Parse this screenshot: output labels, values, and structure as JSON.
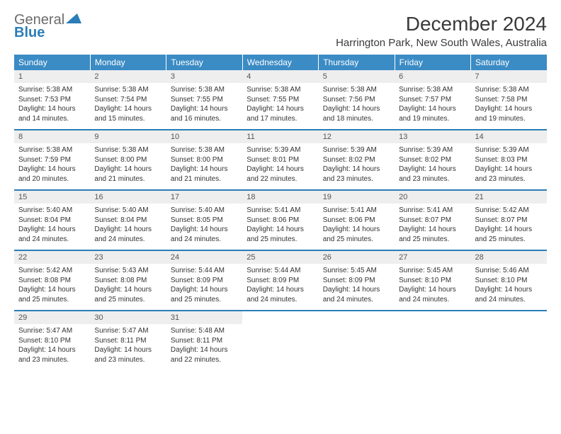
{
  "logo": {
    "word1": "General",
    "word2": "Blue"
  },
  "title": "December 2024",
  "location": "Harrington Park, New South Wales, Australia",
  "header_bg": "#3b8bc4",
  "rule_color": "#2a7db8",
  "daynum_bg": "#eeeeee",
  "dow": [
    "Sunday",
    "Monday",
    "Tuesday",
    "Wednesday",
    "Thursday",
    "Friday",
    "Saturday"
  ],
  "fonts": {
    "title_size": 28,
    "location_size": 15,
    "dow_size": 12,
    "daynum_size": 11,
    "body_size": 10
  },
  "days": [
    {
      "n": 1,
      "sr": "5:38 AM",
      "ss": "7:53 PM",
      "dl": "14 hours and 14 minutes."
    },
    {
      "n": 2,
      "sr": "5:38 AM",
      "ss": "7:54 PM",
      "dl": "14 hours and 15 minutes."
    },
    {
      "n": 3,
      "sr": "5:38 AM",
      "ss": "7:55 PM",
      "dl": "14 hours and 16 minutes."
    },
    {
      "n": 4,
      "sr": "5:38 AM",
      "ss": "7:55 PM",
      "dl": "14 hours and 17 minutes."
    },
    {
      "n": 5,
      "sr": "5:38 AM",
      "ss": "7:56 PM",
      "dl": "14 hours and 18 minutes."
    },
    {
      "n": 6,
      "sr": "5:38 AM",
      "ss": "7:57 PM",
      "dl": "14 hours and 19 minutes."
    },
    {
      "n": 7,
      "sr": "5:38 AM",
      "ss": "7:58 PM",
      "dl": "14 hours and 19 minutes."
    },
    {
      "n": 8,
      "sr": "5:38 AM",
      "ss": "7:59 PM",
      "dl": "14 hours and 20 minutes."
    },
    {
      "n": 9,
      "sr": "5:38 AM",
      "ss": "8:00 PM",
      "dl": "14 hours and 21 minutes."
    },
    {
      "n": 10,
      "sr": "5:38 AM",
      "ss": "8:00 PM",
      "dl": "14 hours and 21 minutes."
    },
    {
      "n": 11,
      "sr": "5:39 AM",
      "ss": "8:01 PM",
      "dl": "14 hours and 22 minutes."
    },
    {
      "n": 12,
      "sr": "5:39 AM",
      "ss": "8:02 PM",
      "dl": "14 hours and 23 minutes."
    },
    {
      "n": 13,
      "sr": "5:39 AM",
      "ss": "8:02 PM",
      "dl": "14 hours and 23 minutes."
    },
    {
      "n": 14,
      "sr": "5:39 AM",
      "ss": "8:03 PM",
      "dl": "14 hours and 23 minutes."
    },
    {
      "n": 15,
      "sr": "5:40 AM",
      "ss": "8:04 PM",
      "dl": "14 hours and 24 minutes."
    },
    {
      "n": 16,
      "sr": "5:40 AM",
      "ss": "8:04 PM",
      "dl": "14 hours and 24 minutes."
    },
    {
      "n": 17,
      "sr": "5:40 AM",
      "ss": "8:05 PM",
      "dl": "14 hours and 24 minutes."
    },
    {
      "n": 18,
      "sr": "5:41 AM",
      "ss": "8:06 PM",
      "dl": "14 hours and 25 minutes."
    },
    {
      "n": 19,
      "sr": "5:41 AM",
      "ss": "8:06 PM",
      "dl": "14 hours and 25 minutes."
    },
    {
      "n": 20,
      "sr": "5:41 AM",
      "ss": "8:07 PM",
      "dl": "14 hours and 25 minutes."
    },
    {
      "n": 21,
      "sr": "5:42 AM",
      "ss": "8:07 PM",
      "dl": "14 hours and 25 minutes."
    },
    {
      "n": 22,
      "sr": "5:42 AM",
      "ss": "8:08 PM",
      "dl": "14 hours and 25 minutes."
    },
    {
      "n": 23,
      "sr": "5:43 AM",
      "ss": "8:08 PM",
      "dl": "14 hours and 25 minutes."
    },
    {
      "n": 24,
      "sr": "5:44 AM",
      "ss": "8:09 PM",
      "dl": "14 hours and 25 minutes."
    },
    {
      "n": 25,
      "sr": "5:44 AM",
      "ss": "8:09 PM",
      "dl": "14 hours and 24 minutes."
    },
    {
      "n": 26,
      "sr": "5:45 AM",
      "ss": "8:09 PM",
      "dl": "14 hours and 24 minutes."
    },
    {
      "n": 27,
      "sr": "5:45 AM",
      "ss": "8:10 PM",
      "dl": "14 hours and 24 minutes."
    },
    {
      "n": 28,
      "sr": "5:46 AM",
      "ss": "8:10 PM",
      "dl": "14 hours and 24 minutes."
    },
    {
      "n": 29,
      "sr": "5:47 AM",
      "ss": "8:10 PM",
      "dl": "14 hours and 23 minutes."
    },
    {
      "n": 30,
      "sr": "5:47 AM",
      "ss": "8:11 PM",
      "dl": "14 hours and 23 minutes."
    },
    {
      "n": 31,
      "sr": "5:48 AM",
      "ss": "8:11 PM",
      "dl": "14 hours and 22 minutes."
    }
  ],
  "labels": {
    "sunrise": "Sunrise:",
    "sunset": "Sunset:",
    "daylight": "Daylight:"
  },
  "first_day_offset": 0,
  "weeks": 5
}
